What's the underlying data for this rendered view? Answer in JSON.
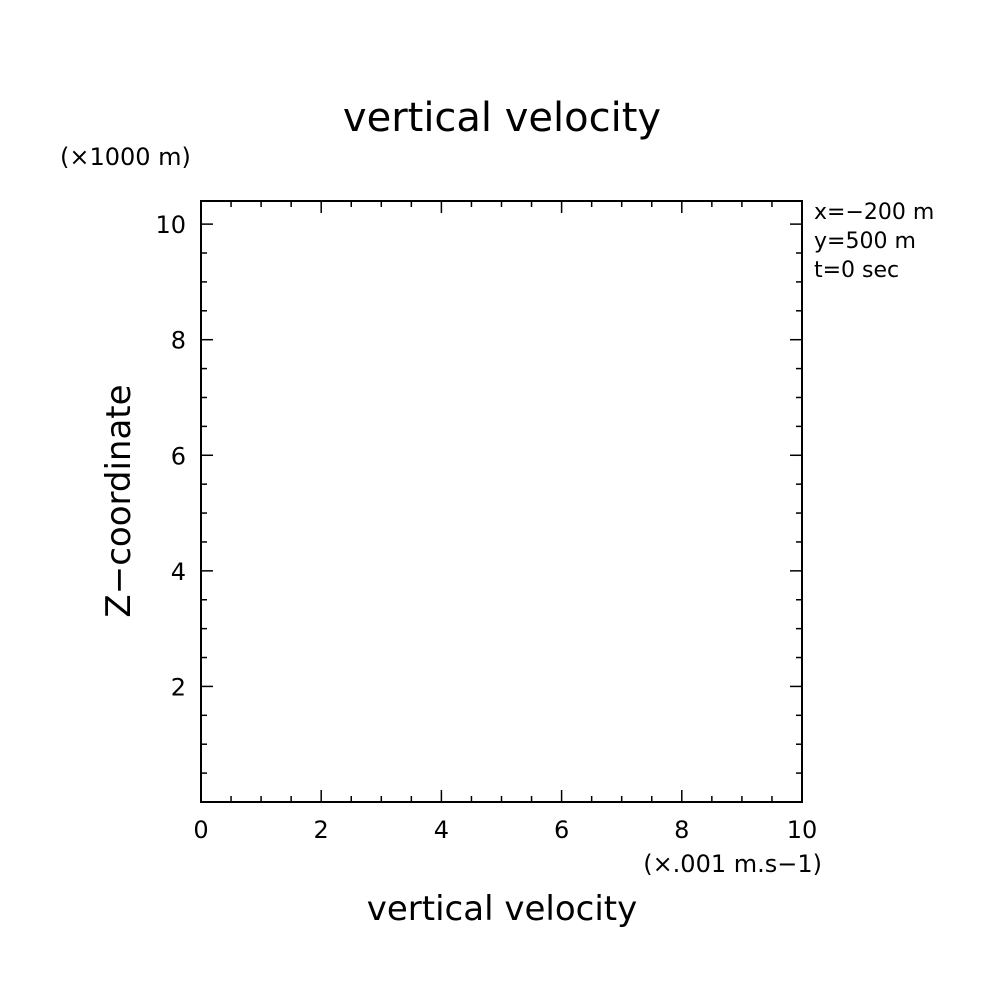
{
  "chart_data": {
    "type": "line",
    "title": "vertical velocity",
    "xlabel": "vertical velocity",
    "ylabel": "Z−coordinate",
    "x_unit": "(×.001 m.s−1)",
    "y_unit": "(×1000 m)",
    "xlim": [
      0,
      10
    ],
    "ylim": [
      0,
      10.4
    ],
    "x_ticks": [
      {
        "value": 0,
        "label": "0"
      },
      {
        "value": 2,
        "label": "2"
      },
      {
        "value": 4,
        "label": "4"
      },
      {
        "value": 6,
        "label": "6"
      },
      {
        "value": 8,
        "label": "8"
      },
      {
        "value": 10,
        "label": "10"
      }
    ],
    "y_ticks": [
      {
        "value": 2,
        "label": "2"
      },
      {
        "value": 4,
        "label": "4"
      },
      {
        "value": 6,
        "label": "6"
      },
      {
        "value": 8,
        "label": "8"
      },
      {
        "value": 10,
        "label": "10"
      }
    ],
    "x_minor_step": 0.5,
    "y_minor_step": 0.5,
    "grid": false,
    "series": [],
    "annotations": [
      "x=−200 m",
      "y=500 m",
      "t=0 sec"
    ]
  }
}
